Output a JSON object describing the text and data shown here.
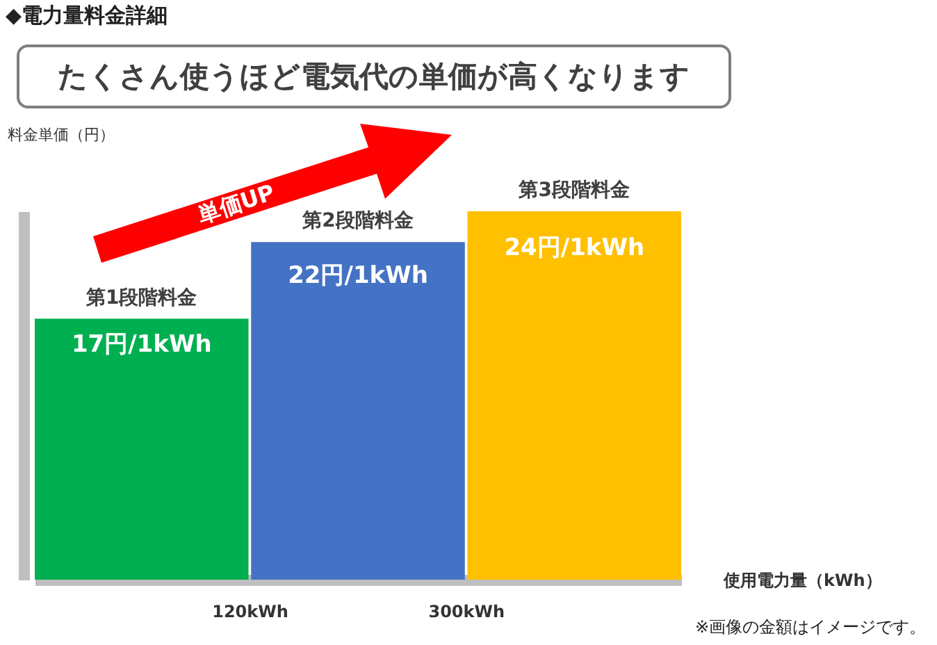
{
  "chart_data": {
    "type": "bar",
    "title": "◆電力量料金詳細",
    "subtitle": "たくさん使うほど電気代の単価が高くなります",
    "ylabel": "料金単価（円）",
    "xlabel": "使用電力量（kWh）",
    "categories": [
      "第1段階料金",
      "第2段階料金",
      "第3段階料金"
    ],
    "values": [
      17,
      22,
      24
    ],
    "colors": [
      "#00b050",
      "#4472c4",
      "#ffc000"
    ],
    "value_labels": [
      "17円/1kWh",
      "22円/1kWh",
      "24円/1kWh"
    ],
    "annotations": [
      "単価UP",
      "120kWh",
      "300kWh",
      "※画像の金額はイメージです。"
    ]
  }
}
